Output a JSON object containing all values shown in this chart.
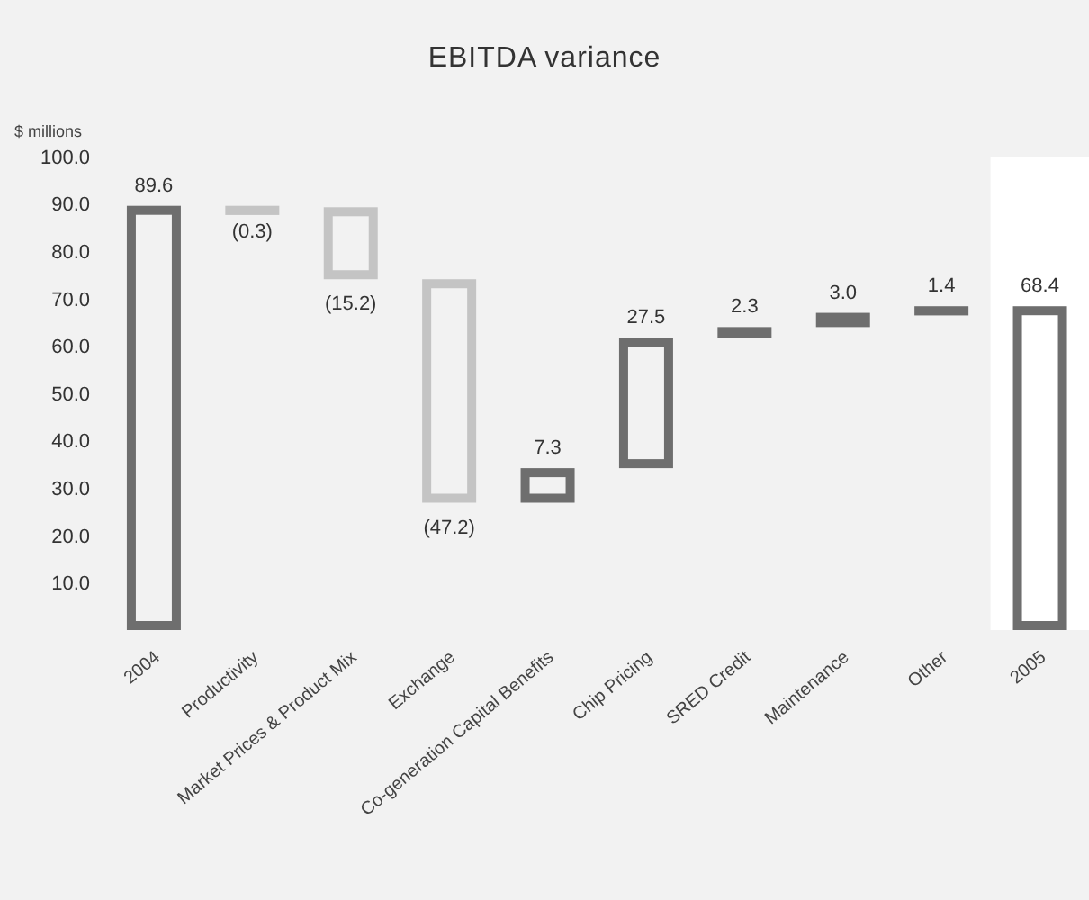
{
  "chart_data": {
    "type": "bar",
    "title": "EBITDA variance",
    "ylabel": "$ millions",
    "categories": [
      "2004",
      "Productivity",
      "Market Prices & Product Mix",
      "Exchange",
      "Co-generation Capital Benefits",
      "Chip Pricing",
      "SRED Credit",
      "Maintenance",
      "Other",
      "2005"
    ],
    "base": [
      0,
      89.6,
      89.3,
      74.1,
      26.9,
      34.2,
      61.7,
      64.0,
      67.0,
      0
    ],
    "values": [
      89.6,
      -0.3,
      -15.2,
      -47.2,
      7.3,
      27.5,
      2.3,
      3.0,
      1.4,
      68.4
    ],
    "value_labels": [
      "89.6",
      "(0.3)",
      "(15.2)",
      "(47.2)",
      "7.3",
      "27.5",
      "2.3",
      "3.0",
      "1.4",
      "68.4"
    ],
    "colors": [
      "#6e6e6e",
      "#c4c4c4",
      "#c4c4c4",
      "#c4c4c4",
      "#6e6e6e",
      "#6e6e6e",
      "#6e6e6e",
      "#6e6e6e",
      "#6e6e6e",
      "#6e6e6e"
    ],
    "ylim": [
      0,
      100
    ],
    "yticks": [
      {
        "value": 10,
        "label": "10.0"
      },
      {
        "value": 20,
        "label": "20.0"
      },
      {
        "value": 30,
        "label": "30.0"
      },
      {
        "value": 40,
        "label": "40.0"
      },
      {
        "value": 50,
        "label": "50.0"
      },
      {
        "value": 60,
        "label": "60.0"
      },
      {
        "value": 70,
        "label": "70.0"
      },
      {
        "value": 80,
        "label": "80.0"
      },
      {
        "value": 90,
        "label": "90.0"
      },
      {
        "value": 100,
        "label": "100.0"
      }
    ],
    "bands": [
      {
        "axis": "x",
        "from": "2005",
        "to": "2005",
        "color": "#ffffff"
      }
    ],
    "grid": false,
    "legend": false
  }
}
